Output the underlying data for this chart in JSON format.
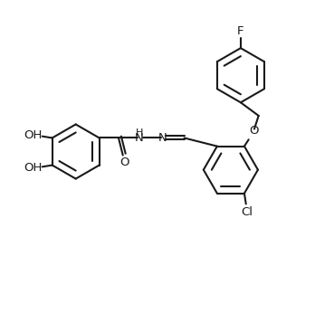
{
  "bg_color": "#ffffff",
  "line_color": "#1a1a1a",
  "line_width": 1.5,
  "font_size": 9.5,
  "figsize": [
    3.69,
    3.57
  ],
  "dpi": 100,
  "xlim": [
    0,
    10
  ],
  "ylim": [
    0,
    9.7
  ]
}
